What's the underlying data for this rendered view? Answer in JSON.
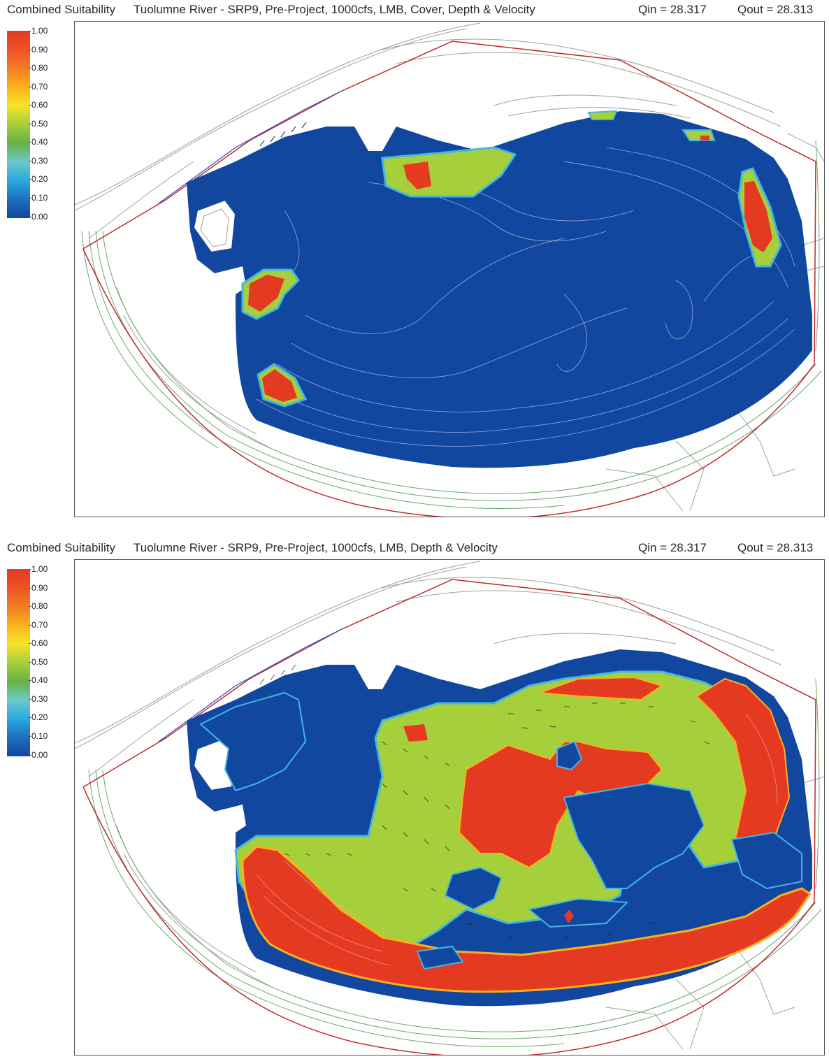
{
  "panels": [
    {
      "legend_title": "Combined Suitability",
      "title": "Tuolumne River - SRP9, Pre-Project, 1000cfs, LMB, Cover, Depth & Velocity",
      "qin": "Qin = 28.317",
      "qout": "Qout = 28.313"
    },
    {
      "legend_title": "Combined Suitability",
      "title": "Tuolumne River - SRP9, Pre-Project, 1000cfs, LMB, Depth & Velocity",
      "qin": "Qin = 28.317",
      "qout": "Qout = 28.313"
    }
  ],
  "legend_ticks": [
    "1.00",
    "0.90",
    "0.80",
    "0.70",
    "0.60",
    "0.50",
    "0.40",
    "0.30",
    "0.20",
    "0.10",
    "0.00"
  ],
  "colors": {
    "low": "#11479f",
    "mid": "#a6cf3c",
    "high": "#e53a22",
    "transition": "#43b7e0",
    "boundary": "#c0282c",
    "inflow": "#2848c0",
    "contour": "#9a9a9a",
    "bank_contour": "#6aa86a"
  }
}
